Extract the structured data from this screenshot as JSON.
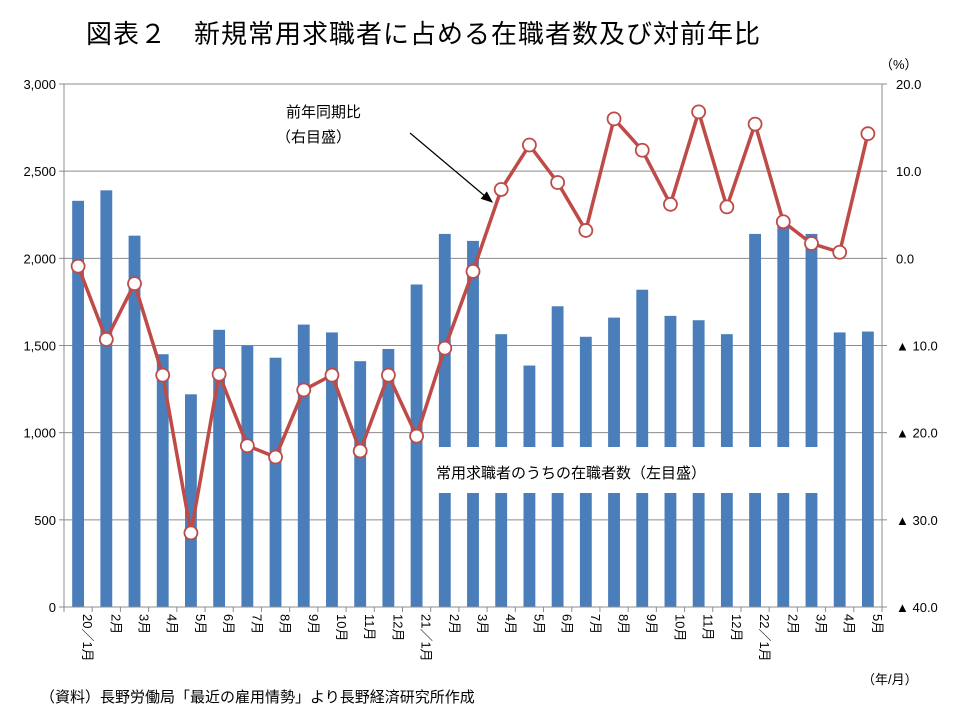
{
  "title": "図表２　新規常用求職者に占める在職者数及び対前年比",
  "source": "（資料）長野労働局「最近の雇用情勢」より長野経済研究所作成",
  "chart_data": {
    "type": "bar",
    "categories": [
      "20／1月",
      "2月",
      "3月",
      "4月",
      "5月",
      "6月",
      "7月",
      "8月",
      "9月",
      "10月",
      "11月",
      "12月",
      "21／1月",
      "2月",
      "3月",
      "4月",
      "5月",
      "6月",
      "7月",
      "8月",
      "9月",
      "10月",
      "11月",
      "12月",
      "22／1月",
      "2月",
      "3月",
      "4月",
      "5月"
    ],
    "series": [
      {
        "name": "常用求職者のうちの在職者数（左目盛）",
        "type": "bar",
        "axis": "left",
        "color": "#4a7ebb",
        "values": [
          2330,
          2390,
          2130,
          1450,
          1220,
          1590,
          1500,
          1430,
          1620,
          1575,
          1410,
          1480,
          1850,
          2140,
          2100,
          1565,
          1385,
          1725,
          1550,
          1660,
          1820,
          1670,
          1645,
          1565,
          2140,
          2200,
          2140,
          1575,
          1580
        ]
      },
      {
        "name": "前年同期比",
        "annotation": [
          "前年同期比",
          "（右目盛）"
        ],
        "type": "line",
        "axis": "right",
        "color": "#be4b48",
        "values": [
          -0.9,
          -9.3,
          -2.9,
          -13.4,
          -31.5,
          -13.3,
          -21.5,
          -22.8,
          -15.1,
          -13.4,
          -22.1,
          -13.4,
          -20.4,
          -10.3,
          -1.5,
          7.9,
          13.0,
          8.7,
          3.2,
          16.0,
          12.4,
          6.2,
          16.8,
          5.9,
          15.4,
          4.2,
          1.7,
          0.7,
          14.3
        ]
      }
    ],
    "y_left": {
      "min": 0,
      "max": 3000,
      "ticks": [
        0,
        500,
        1000,
        1500,
        2000,
        2500,
        3000
      ],
      "tick_labels": [
        "0",
        "500",
        "1,000",
        "1,500",
        "2,000",
        "2,500",
        "3,000"
      ]
    },
    "y_right": {
      "min": -40,
      "max": 20,
      "unit": "（%）",
      "ticks": [
        20,
        10,
        0,
        -10,
        -20,
        -30,
        -40
      ],
      "tick_labels": [
        "20.0",
        "10.0",
        "0.0",
        "▲ 10.0",
        "▲ 20.0",
        "▲ 30.0",
        "▲ 40.0"
      ]
    },
    "x_unit": "（年/月）",
    "grid": true
  }
}
